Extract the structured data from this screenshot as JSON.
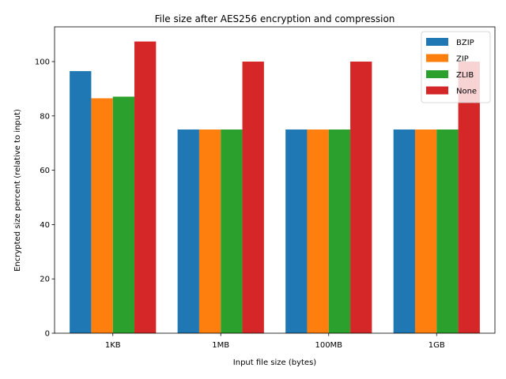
{
  "chart_data": {
    "type": "bar",
    "title": "File size after AES256 encryption and compression",
    "xlabel": "Input file size (bytes)",
    "ylabel": "Encrypted size percent (relative to input)",
    "categories": [
      "1KB",
      "1MB",
      "100MB",
      "1GB"
    ],
    "ylim": [
      0,
      112.8
    ],
    "yticks": [
      0,
      20,
      40,
      60,
      80,
      100
    ],
    "grid": false,
    "legend_position": "top-right",
    "series": [
      {
        "name": "BZIP",
        "color": "#1f77b4",
        "values": [
          96.5,
          75,
          75,
          75
        ]
      },
      {
        "name": "ZIP",
        "color": "#ff7f0e",
        "values": [
          86.5,
          75,
          75,
          75
        ]
      },
      {
        "name": "ZLIB",
        "color": "#2ca02c",
        "values": [
          87.1,
          75,
          75,
          75
        ]
      },
      {
        "name": "None",
        "color": "#d62728",
        "values": [
          107.4,
          100,
          100,
          100
        ]
      }
    ]
  }
}
